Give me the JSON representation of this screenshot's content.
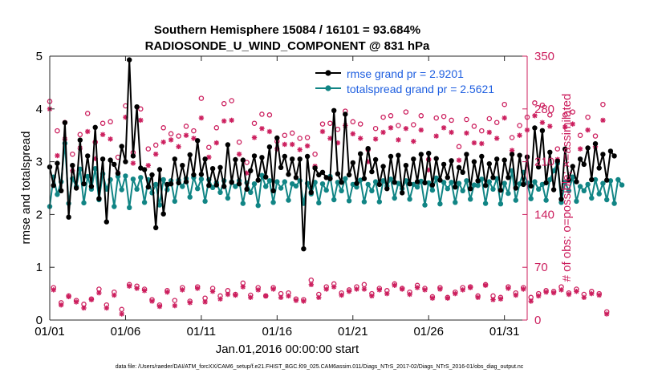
{
  "chart_data": {
    "type": "line",
    "title_line1": "Southern Hemisphere 15084 / 16101 = 93.684%",
    "title_line2": "RADIOSONDE_U_WIND_COMPONENT @ 831 hPa",
    "xlabel": "Jan.01,2016 00:00:00 start",
    "ylabel_left": "rmse and totalspread",
    "ylabel_right": "# of obs: o=possible; ×=assimilated",
    "footer": "data file: /Users/raeder/DAI/ATM_forcXX/CAM6_setup/f.e21.FHIST_BGC.f09_025.CAM6assim.011/Diags_NTrS_2017-02/Diags_NTrS_2016-01/obs_diag_output.nc",
    "xlim": [
      0,
      31.5
    ],
    "ylim_left": [
      0,
      5
    ],
    "ylim_right": [
      0,
      350
    ],
    "xticks": [
      0,
      5,
      10,
      15,
      20,
      25,
      30
    ],
    "xtick_labels": [
      "01/01",
      "01/06",
      "01/11",
      "01/16",
      "01/21",
      "01/26",
      "01/31"
    ],
    "yticks_left": [
      0,
      1,
      2,
      3,
      4,
      5
    ],
    "yticks_left_labels": [
      "0",
      "1",
      "2",
      "3",
      "4",
      "5"
    ],
    "yticks_right": [
      0,
      70,
      140,
      210,
      280,
      350
    ],
    "yticks_right_labels": [
      "0",
      "70",
      "140",
      "210",
      "280",
      "350"
    ],
    "legend": [
      "rmse grand pr = 2.9201",
      "totalspread grand pr = 2.5621"
    ],
    "colors": {
      "rmse": "#000000",
      "spread": "#118585",
      "obs": "#cc1f5e",
      "legend_text": "#1f5fe0"
    },
    "time_step_days": 0.25,
    "series": [
      {
        "name": "rmse",
        "values": [
          2.9,
          2.55,
          2.97,
          2.45,
          3.74,
          1.95,
          2.93,
          2.5,
          3.41,
          2.58,
          3.11,
          2.53,
          3.65,
          2.3,
          3.05,
          1.86,
          3.03,
          2.95,
          2.78,
          3.29,
          3.0,
          4.93,
          3.11,
          4.04,
          2.88,
          2.85,
          2.52,
          2.75,
          1.75,
          2.85,
          2.01,
          2.57,
          2.58,
          3.05,
          2.6,
          2.93,
          2.62,
          3.13,
          2.75,
          3.4,
          2.76,
          3.05,
          2.55,
          2.87,
          2.56,
          2.89,
          2.53,
          3.32,
          2.61,
          3.04,
          2.58,
          3.03,
          2.48,
          2.83,
          3.11,
          2.65,
          3.08,
          2.71,
          3.28,
          2.45,
          3.45,
          2.89,
          3.1,
          2.76,
          3.05,
          2.7,
          3.05,
          1.35,
          3.1,
          2.42,
          2.88,
          2.75,
          2.8,
          2.7,
          2.68,
          3.97,
          2.77,
          2.61,
          3.9,
          2.75,
          2.98,
          2.59,
          3.15,
          2.68,
          3.25,
          2.81,
          3.04,
          2.57,
          2.91,
          2.49,
          3.1,
          2.61,
          3.12,
          2.41,
          2.93,
          2.58,
          3.05,
          2.62,
          3.14,
          2.6,
          3.16,
          2.56,
          3.06,
          2.65,
          2.95,
          2.7,
          3.02,
          2.52,
          2.89,
          2.8,
          3.14,
          2.49,
          3.0,
          2.64,
          3.1,
          2.55,
          2.96,
          2.7,
          3.05,
          2.46,
          3.03,
          2.7,
          3.14,
          2.5,
          3.12,
          2.57,
          3.09,
          2.54,
          3.64,
          2.9,
          3.59,
          2.6,
          3.18,
          2.47,
          3.01,
          2.29,
          3.24,
          2.66,
          2.91,
          2.62,
          3.05,
          2.95,
          3.26,
          2.66,
          3.34,
          2.88,
          3.14,
          2.65,
          3.2,
          3.11
        ]
      },
      {
        "name": "totalspread",
        "values": [
          2.15,
          2.71,
          2.38,
          2.62,
          3.35,
          2.21,
          2.68,
          2.53,
          2.86,
          2.22,
          2.72,
          2.48,
          2.87,
          2.28,
          2.77,
          2.48,
          2.66,
          2.15,
          2.72,
          2.47,
          2.73,
          2.13,
          2.67,
          2.48,
          2.7,
          2.23,
          2.66,
          2.41,
          2.57,
          2.18,
          2.66,
          2.47,
          2.64,
          2.25,
          2.65,
          2.53,
          2.68,
          2.33,
          2.7,
          2.49,
          2.67,
          2.25,
          2.66,
          2.51,
          2.6,
          2.42,
          2.64,
          2.31,
          2.62,
          2.53,
          2.64,
          2.21,
          2.6,
          2.42,
          2.58,
          2.17,
          2.74,
          2.53,
          2.64,
          2.23,
          2.62,
          2.5,
          2.62,
          2.27,
          2.58,
          2.54,
          2.64,
          2.21,
          2.59,
          2.39,
          2.61,
          2.22,
          2.58,
          2.46,
          2.72,
          2.28,
          2.61,
          2.45,
          2.68,
          2.26,
          2.57,
          2.52,
          2.65,
          2.24,
          2.57,
          2.45,
          2.62,
          2.24,
          2.64,
          2.54,
          2.67,
          2.31,
          2.59,
          2.49,
          2.64,
          2.29,
          2.57,
          2.52,
          2.63,
          2.18,
          2.6,
          2.46,
          2.69,
          2.2,
          2.61,
          2.49,
          2.61,
          2.23,
          2.59,
          2.45,
          2.64,
          2.29,
          2.56,
          2.55,
          2.67,
          2.21,
          2.62,
          2.48,
          2.68,
          2.2,
          2.59,
          2.4,
          2.83,
          2.27,
          2.58,
          2.8,
          2.6,
          2.3,
          2.62,
          2.48,
          2.57,
          2.27,
          2.66,
          2.83,
          2.97,
          2.23,
          2.61,
          2.45,
          2.71,
          2.25,
          2.53,
          2.45,
          2.57,
          2.31,
          2.66,
          2.39,
          2.59,
          2.28,
          2.64,
          2.21,
          2.66,
          2.56
        ]
      },
      {
        "name": "obs_possible",
        "values": [
          290,
          43,
          251,
          23,
          262,
          32,
          220,
          26,
          246,
          21,
          274,
          28,
          236,
          41,
          261,
          20,
          263,
          37,
          216,
          14,
          284,
          47,
          222,
          45,
          280,
          41,
          227,
          27,
          232,
          20,
          255,
          39,
          247,
          26,
          244,
          43,
          257,
          25,
          251,
          44,
          294,
          29,
          229,
          42,
          255,
          32,
          287,
          39,
          291,
          34,
          236,
          49,
          209,
          33,
          261,
          43,
          273,
          32,
          272,
          43,
          237,
          35,
          245,
          36,
          248,
          28,
          241,
          27,
          242,
          53,
          220,
          34,
          260,
          44,
          261,
          48,
          253,
          36,
          277,
          40,
          263,
          44,
          260,
          47,
          226,
          35,
          254,
          42,
          269,
          39,
          271,
          48,
          258,
          42,
          276,
          37,
          259,
          46,
          271,
          42,
          213,
          31,
          268,
          43,
          270,
          30,
          265,
          37,
          230,
          43,
          266,
          44,
          257,
          32,
          251,
          47,
          267,
          32,
          262,
          30,
          286,
          44,
          242,
          36,
          258,
          43,
          269,
          30,
          288,
          35,
          285,
          39,
          272,
          38,
          227,
          44,
          272,
          36,
          276,
          41,
          245,
          34,
          269,
          38,
          244,
          35,
          286,
          11
        ]
      },
      {
        "name": "obs_assimilated",
        "values": [
          280,
          40,
          218,
          20,
          240,
          31,
          198,
          24,
          228,
          16,
          250,
          27,
          214,
          36,
          246,
          16,
          240,
          33,
          195,
          8,
          269,
          45,
          208,
          42,
          265,
          39,
          205,
          25,
          220,
          18,
          236,
          37,
          239,
          19,
          230,
          40,
          245,
          23,
          241,
          42,
          268,
          24,
          216,
          38,
          235,
          28,
          264,
          34,
          265,
          33,
          220,
          44,
          195,
          30,
          242,
          40,
          254,
          32,
          250,
          41,
          227,
          30,
          233,
          32,
          233,
          26,
          226,
          25,
          231,
          47,
          204,
          30,
          250,
          41,
          241,
          44,
          235,
          33,
          258,
          38,
          247,
          41,
          241,
          41,
          210,
          32,
          240,
          40,
          249,
          35,
          255,
          46,
          239,
          41,
          254,
          34,
          237,
          43,
          252,
          40,
          199,
          29,
          244,
          41,
          255,
          29,
          249,
          35,
          212,
          40,
          248,
          43,
          235,
          30,
          234,
          46,
          249,
          27,
          241,
          28,
          268,
          42,
          225,
          33,
          245,
          41,
          252,
          25,
          271,
          32,
          262,
          37,
          257,
          36,
          213,
          40,
          256,
          34,
          260,
          38,
          227,
          30,
          252,
          35,
          230,
          33,
          265,
          8
        ]
      }
    ]
  }
}
